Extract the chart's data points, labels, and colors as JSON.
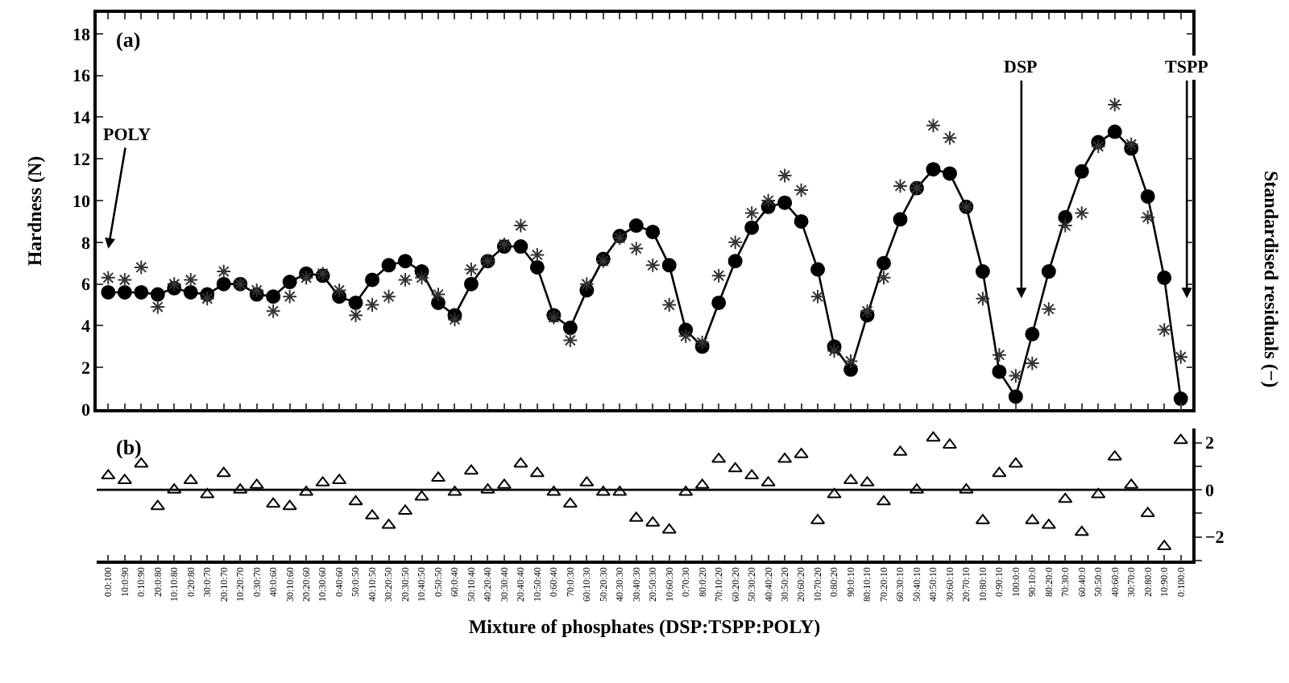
{
  "chart_data": [
    {
      "type": "line",
      "ylabel": "Hardness (N)",
      "ylim": [
        0,
        19
      ],
      "yticks": [
        0,
        2,
        4,
        6,
        8,
        10,
        12,
        14,
        16,
        18
      ],
      "grid": false,
      "tick_labels": "y",
      "categories": [
        null,
        null,
        null,
        null,
        null,
        null,
        null,
        null,
        null,
        null,
        null,
        null,
        null,
        null,
        null,
        null,
        null,
        null,
        null,
        null,
        null,
        null,
        null,
        null,
        null,
        null,
        null,
        null,
        null,
        null,
        null,
        null,
        null,
        null,
        null,
        null,
        null,
        null,
        null,
        null,
        null,
        null,
        null,
        null,
        null,
        null,
        null,
        null,
        null,
        null,
        null,
        null,
        null,
        null,
        null,
        null,
        null,
        null,
        null,
        null,
        null,
        null,
        null,
        null,
        null,
        null
      ],
      "series": [
        {
          "marker": "circle",
          "color": "#000000",
          "values": [
            5.6,
            5.6,
            5.6,
            5.5,
            5.8,
            5.6,
            5.5,
            6.0,
            6.0,
            5.5,
            5.4,
            6.1,
            6.5,
            6.4,
            5.4,
            5.1,
            6.2,
            6.9,
            7.1,
            6.6,
            5.1,
            4.5,
            6.0,
            7.1,
            7.8,
            7.8,
            6.8,
            4.5,
            3.9,
            5.7,
            7.2,
            8.3,
            8.8,
            8.5,
            6.9,
            3.8,
            3.0,
            5.1,
            7.1,
            8.7,
            9.7,
            9.9,
            9.0,
            6.7,
            3.0,
            1.9,
            4.5,
            7.0,
            9.1,
            10.6,
            11.5,
            11.3,
            9.7,
            6.6,
            1.8,
            0.6,
            3.6,
            6.6,
            9.2,
            11.4,
            12.8,
            13.3,
            12.5,
            10.2,
            6.3,
            0.5
          ]
        },
        {
          "type": "scatter",
          "marker": "cross",
          "color": "#333333",
          "values": [
            6.3,
            6.2,
            6.8,
            4.9,
            6.0,
            6.2,
            5.3,
            6.6,
            6.0,
            5.7,
            4.7,
            5.4,
            6.3,
            6.5,
            5.7,
            4.5,
            5.0,
            5.4,
            6.2,
            6.3,
            5.5,
            4.3,
            6.7,
            7.1,
            7.9,
            8.8,
            7.4,
            4.4,
            3.3,
            6.0,
            7.1,
            8.2,
            7.7,
            6.9,
            5.0,
            3.5,
            3.2,
            6.4,
            8.0,
            9.4,
            10.0,
            11.2,
            10.5,
            5.4,
            2.8,
            2.3,
            4.7,
            6.3,
            10.7,
            10.6,
            13.6,
            13.0,
            9.7,
            5.3,
            2.6,
            1.6,
            2.2,
            4.8,
            8.8,
            9.4,
            12.6,
            14.6,
            12.7,
            9.2,
            3.8,
            2.5
          ]
        }
      ],
      "annotations": [
        "(a)",
        "POLY",
        "DSP",
        "TSPP"
      ]
    },
    {
      "type": "scatter",
      "marker": "triangle",
      "xlabel": "Mixture of phosphates (DSP:TSPP:POLY)",
      "y2label": "Standardised residuals (−)",
      "y2lim": [
        -3,
        2.6
      ],
      "y2ticks": [
        {
          "value": -3,
          "label": null
        },
        -2,
        {
          "value": -1,
          "label": null
        },
        0,
        {
          "value": 1,
          "label": null
        },
        2
      ],
      "grid": false,
      "categories": [
        "0:0:100",
        "10:0:90",
        "0:10:90",
        "20:0:80",
        "10:10:80",
        "0:20:80",
        "30:0:70",
        "20:10:70",
        "10:20:70",
        "0:30:70",
        "40:0:60",
        "30:10:60",
        "20:20:60",
        "10:30:60",
        "0:40:60",
        "50:0:50",
        "40:10:50",
        "30:20:50",
        "20:30:50",
        "10:40:50",
        "0:50:50",
        "60:0:40",
        "50:10:40",
        "40:20:40",
        "30:30:40",
        "20:40:40",
        "10:50:40",
        "0:60:40",
        "70:0:30",
        "60:10:30",
        "50:20:30",
        "40:30:30",
        "30:40:30",
        "20:50:30",
        "10:60:30",
        "0:70:30",
        "80:0:20",
        "70:10:20",
        "60:20:20",
        "50:30:20",
        "40:40:20",
        "30:50:20",
        "20:60:20",
        "10:70:20",
        "0:80:20",
        "90:0:10",
        "80:10:10",
        "70:20:10",
        "60:30:10",
        "50:40:10",
        "40:50:10",
        "30:60:10",
        "20:70:10",
        "10:80:10",
        "0:90:10",
        "100:0:0",
        "90:10:0",
        "80:20:0",
        "70:30:0",
        "60:40:0",
        "50:50:0",
        "40:60:0",
        "30:70:0",
        "20:80:0",
        "10:90:0",
        "0:100:0"
      ],
      "series": [
        {
          "axis": "y2",
          "color": "#000000",
          "values": [
            0.6,
            0.4,
            1.1,
            -0.7,
            0,
            0.4,
            -0.2,
            0.7,
            0,
            0.2,
            -0.6,
            -0.7,
            -0.1,
            0.3,
            0.4,
            -0.5,
            -1.1,
            -1.5,
            -0.9,
            -0.3,
            0.5,
            -0.1,
            0.8,
            0,
            0.2,
            1.1,
            0.7,
            -0.1,
            -0.6,
            0.3,
            -0.1,
            -0.1,
            -1.2,
            -1.4,
            -1.7,
            -0.1,
            0.2,
            1.3,
            0.9,
            0.6,
            0.3,
            1.3,
            1.5,
            -1.3,
            -0.2,
            0.4,
            0.3,
            -0.5,
            1.6,
            0,
            2.2,
            1.9,
            0,
            -1.3,
            0.7,
            1.1,
            -1.3,
            -1.5,
            -0.4,
            -1.8,
            -0.2,
            1.4,
            0.2,
            -1.0,
            -2.4,
            2.1
          ]
        }
      ],
      "ref_lines": [
        {
          "axis": "y2",
          "value": 0,
          "color": "#000000"
        }
      ],
      "annotations": [
        "(b)"
      ]
    }
  ]
}
